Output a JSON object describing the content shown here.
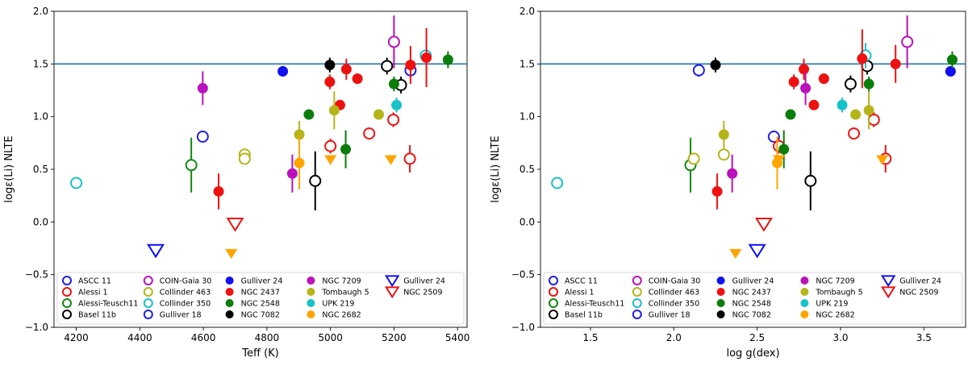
{
  "chart_data": [
    {
      "type": "scatter",
      "xlabel": "Teff (K)",
      "ylabel": "logε(Li) NLTE",
      "xlim": [
        4130,
        5430
      ],
      "ylim": [
        -1.0,
        2.0
      ],
      "xticks": [
        "4200",
        "4400",
        "4600",
        "4800",
        "5000",
        "5200",
        "5400"
      ],
      "yticks": [
        "−1.0",
        "−0.5",
        "0.0",
        "0.5",
        "1.0",
        "1.5",
        "2.0"
      ],
      "hline": 1.5,
      "legend": "lower",
      "series": [
        {
          "name": "ASCC 11",
          "marker": "circle-open",
          "color": "#1f1fe6",
          "points": [
            {
              "x": 4598,
              "y": 0.81,
              "err": 0.05
            },
            {
              "x": 5252,
              "y": 1.44,
              "err": 0.06
            }
          ]
        },
        {
          "name": "Alessi 1",
          "marker": "circle-open",
          "color": "#ee1111",
          "points": [
            {
              "x": 5000,
              "y": 0.72,
              "err": 0.07
            },
            {
              "x": 5122,
              "y": 0.84,
              "err": 0.05
            },
            {
              "x": 5198,
              "y": 0.97,
              "err": 0.07
            },
            {
              "x": 5250,
              "y": 0.6,
              "err": 0.13
            }
          ]
        },
        {
          "name": "Alessi-Teusch11",
          "marker": "circle-open",
          "color": "#0f8a0f",
          "points": [
            {
              "x": 4562,
              "y": 0.54,
              "err": 0.26
            }
          ]
        },
        {
          "name": "Basel 11b",
          "marker": "circle-open",
          "color": "#000000",
          "points": [
            {
              "x": 4952,
              "y": 0.39,
              "err": 0.28
            },
            {
              "x": 5178,
              "y": 1.48,
              "err": 0.08
            },
            {
              "x": 5222,
              "y": 1.3,
              "err": 0.08
            }
          ]
        },
        {
          "name": "COIN-Gaia 30",
          "marker": "circle-open",
          "color": "#bb11bb",
          "points": [
            {
              "x": 5200,
              "y": 1.71,
              "err": 0.25
            }
          ]
        },
        {
          "name": "Collinder 463",
          "marker": "circle-open",
          "color": "#b5b51a",
          "points": [
            {
              "x": 4730,
              "y": 0.64,
              "err": 0.04
            },
            {
              "x": 4730,
              "y": 0.6,
              "err": 0.04
            }
          ]
        },
        {
          "name": "Collinder 350",
          "marker": "circle-open",
          "color": "#17c2c8",
          "points": [
            {
              "x": 4200,
              "y": 0.37,
              "err": 0.05
            },
            {
              "x": 5300,
              "y": 1.58,
              "err": 0.05
            }
          ]
        },
        {
          "name": "Gulliver 18",
          "marker": "circle-open",
          "color": "#1f1fe6",
          "points": []
        },
        {
          "name": "Gulliver 24",
          "marker": "circle",
          "color": "#1010f0",
          "points": [
            {
              "x": 4850,
              "y": 1.43,
              "err": 0.05
            }
          ]
        },
        {
          "name": "NGC 2437",
          "marker": "circle",
          "color": "#ee1111",
          "points": [
            {
              "x": 4648,
              "y": 0.29,
              "err": 0.17
            },
            {
              "x": 4998,
              "y": 1.33,
              "err": 0.07
            },
            {
              "x": 5030,
              "y": 1.11,
              "err": 0.04
            },
            {
              "x": 5050,
              "y": 1.45,
              "err": 0.1
            },
            {
              "x": 5085,
              "y": 1.36,
              "err": 0.05
            },
            {
              "x": 5252,
              "y": 1.49,
              "err": 0.18
            },
            {
              "x": 5302,
              "y": 1.56,
              "err": 0.28
            }
          ]
        },
        {
          "name": "NGC 2548",
          "marker": "circle",
          "color": "#0a7d0a",
          "points": [
            {
              "x": 4932,
              "y": 1.02,
              "err": 0.04
            },
            {
              "x": 5048,
              "y": 0.69,
              "err": 0.18
            },
            {
              "x": 5200,
              "y": 1.31,
              "err": 0.07
            },
            {
              "x": 5370,
              "y": 1.54,
              "err": 0.08
            }
          ]
        },
        {
          "name": "NGC 7082",
          "marker": "circle",
          "color": "#000000",
          "points": [
            {
              "x": 4998,
              "y": 1.49,
              "err": 0.07
            }
          ]
        },
        {
          "name": "NGC 7209",
          "marker": "circle",
          "color": "#bb11bb",
          "points": [
            {
              "x": 4598,
              "y": 1.27,
              "err": 0.16
            },
            {
              "x": 4880,
              "y": 0.46,
              "err": 0.18
            }
          ]
        },
        {
          "name": "Tombaugh 5",
          "marker": "circle",
          "color": "#b5b51a",
          "points": [
            {
              "x": 4902,
              "y": 0.83,
              "err": 0.13
            },
            {
              "x": 5012,
              "y": 1.06,
              "err": 0.18
            },
            {
              "x": 5152,
              "y": 1.02,
              "err": 0.04
            }
          ]
        },
        {
          "name": "UPK 219",
          "marker": "circle",
          "color": "#17c2c8",
          "points": [
            {
              "x": 5208,
              "y": 1.11,
              "err": 0.07
            }
          ]
        },
        {
          "name": "NGC 2682",
          "marker": "circle",
          "color": "#ffa500",
          "points": [
            {
              "x": 4902,
              "y": 0.56,
              "err": 0.25
            }
          ]
        },
        {
          "name": "Gulliver 24",
          "marker": "triangle-down-open",
          "color": "#1010f0",
          "points": [
            {
              "x": 4450,
              "y": -0.27
            }
          ]
        },
        {
          "name": "NGC 2509",
          "marker": "triangle-down-open",
          "color": "#ee1111",
          "points": [
            {
              "x": 4700,
              "y": -0.02
            }
          ]
        },
        {
          "name": "NGC 2682 (upper limits)",
          "legend": false,
          "marker": "triangle-down",
          "color": "#ffa500",
          "points": [
            {
              "x": 4688,
              "y": -0.3
            },
            {
              "x": 5000,
              "y": 0.59
            },
            {
              "x": 5190,
              "y": 0.59
            }
          ]
        }
      ]
    },
    {
      "type": "scatter",
      "xlabel": "log g(dex)",
      "ylabel": "logε(Li) NLTE",
      "xlim": [
        1.2,
        3.75
      ],
      "ylim": [
        -1.0,
        2.0
      ],
      "xticks": [
        "1.5",
        "2.0",
        "2.5",
        "3.0",
        "3.5"
      ],
      "yticks": [
        "−1.0",
        "−0.5",
        "0.0",
        "0.5",
        "1.0",
        "1.5",
        "2.0"
      ],
      "hline": 1.5,
      "legend": "lower",
      "series": [
        {
          "name": "ASCC 11",
          "marker": "circle-open",
          "color": "#1f1fe6",
          "points": [
            {
              "x": 2.15,
              "y": 1.44,
              "err": 0.06
            },
            {
              "x": 2.6,
              "y": 0.81,
              "err": 0.05
            }
          ]
        },
        {
          "name": "Alessi 1",
          "marker": "circle-open",
          "color": "#ee1111",
          "points": [
            {
              "x": 3.08,
              "y": 0.84,
              "err": 0.05
            },
            {
              "x": 3.2,
              "y": 0.97,
              "err": 0.07
            },
            {
              "x": 3.27,
              "y": 0.6,
              "err": 0.13
            },
            {
              "x": 2.63,
              "y": 0.72,
              "err": 0.07
            }
          ]
        },
        {
          "name": "Alessi-Teusch11",
          "marker": "circle-open",
          "color": "#0f8a0f",
          "points": [
            {
              "x": 2.1,
              "y": 0.54,
              "err": 0.26
            }
          ]
        },
        {
          "name": "Basel 11b",
          "marker": "circle-open",
          "color": "#000000",
          "points": [
            {
              "x": 2.82,
              "y": 0.39,
              "err": 0.28
            },
            {
              "x": 3.06,
              "y": 1.31,
              "err": 0.08
            },
            {
              "x": 3.16,
              "y": 1.48,
              "err": 0.08
            }
          ]
        },
        {
          "name": "COIN-Gaia 30",
          "marker": "circle-open",
          "color": "#bb11bb",
          "points": [
            {
              "x": 3.4,
              "y": 1.71,
              "err": 0.25
            }
          ]
        },
        {
          "name": "Collinder 463",
          "marker": "circle-open",
          "color": "#b5b51a",
          "points": [
            {
              "x": 2.12,
              "y": 0.6,
              "err": 0.04
            },
            {
              "x": 2.3,
              "y": 0.64,
              "err": 0.04
            }
          ]
        },
        {
          "name": "Collinder 350",
          "marker": "circle-open",
          "color": "#17c2c8",
          "points": [
            {
              "x": 1.3,
              "y": 0.37,
              "err": 0.05
            },
            {
              "x": 3.15,
              "y": 1.58,
              "err": 0.12
            }
          ]
        },
        {
          "name": "Gulliver 18",
          "marker": "circle-open",
          "color": "#1f1fe6",
          "points": []
        },
        {
          "name": "Gulliver 24",
          "marker": "circle",
          "color": "#1010f0",
          "points": [
            {
              "x": 3.66,
              "y": 1.43,
              "err": 0.05
            }
          ]
        },
        {
          "name": "NGC 2437",
          "marker": "circle",
          "color": "#ee1111",
          "points": [
            {
              "x": 2.26,
              "y": 0.29,
              "err": 0.17
            },
            {
              "x": 2.72,
              "y": 1.33,
              "err": 0.07
            },
            {
              "x": 2.78,
              "y": 1.45,
              "err": 0.1
            },
            {
              "x": 2.84,
              "y": 1.11,
              "err": 0.04
            },
            {
              "x": 2.9,
              "y": 1.36,
              "err": 0.05
            },
            {
              "x": 3.13,
              "y": 1.55,
              "err": 0.28
            },
            {
              "x": 3.33,
              "y": 1.5,
              "err": 0.18
            }
          ]
        },
        {
          "name": "NGC 2548",
          "marker": "circle",
          "color": "#0a7d0a",
          "points": [
            {
              "x": 2.66,
              "y": 0.69,
              "err": 0.18
            },
            {
              "x": 2.7,
              "y": 1.02,
              "err": 0.04
            },
            {
              "x": 3.17,
              "y": 1.31,
              "err": 0.07
            },
            {
              "x": 3.67,
              "y": 1.54,
              "err": 0.08
            }
          ]
        },
        {
          "name": "NGC 7082",
          "marker": "circle",
          "color": "#000000",
          "points": [
            {
              "x": 2.25,
              "y": 1.49,
              "err": 0.07
            }
          ]
        },
        {
          "name": "NGC 7209",
          "marker": "circle",
          "color": "#bb11bb",
          "points": [
            {
              "x": 2.35,
              "y": 0.46,
              "err": 0.18
            },
            {
              "x": 2.79,
              "y": 1.27,
              "err": 0.16
            }
          ]
        },
        {
          "name": "Tombaugh 5",
          "marker": "circle",
          "color": "#b5b51a",
          "points": [
            {
              "x": 2.3,
              "y": 0.83,
              "err": 0.13
            },
            {
              "x": 3.09,
              "y": 1.02,
              "err": 0.04
            },
            {
              "x": 3.17,
              "y": 1.06,
              "err": 0.18
            }
          ]
        },
        {
          "name": "UPK 219",
          "marker": "circle",
          "color": "#17c2c8",
          "points": [
            {
              "x": 3.01,
              "y": 1.11,
              "err": 0.07
            }
          ]
        },
        {
          "name": "NGC 2682",
          "marker": "circle",
          "color": "#ffa500",
          "points": [
            {
              "x": 2.62,
              "y": 0.56,
              "err": 0.25
            }
          ]
        },
        {
          "name": "Gulliver 24",
          "marker": "triangle-down-open",
          "color": "#1010f0",
          "points": [
            {
              "x": 2.5,
              "y": -0.27
            }
          ]
        },
        {
          "name": "NGC 2509",
          "marker": "triangle-down-open",
          "color": "#ee1111",
          "points": [
            {
              "x": 2.54,
              "y": -0.02
            }
          ]
        },
        {
          "name": "NGC 2682 (upper limits)",
          "legend": false,
          "marker": "triangle-down",
          "color": "#ffa500",
          "points": [
            {
              "x": 2.37,
              "y": -0.3
            },
            {
              "x": 2.63,
              "y": 0.59
            },
            {
              "x": 3.25,
              "y": 0.59
            }
          ]
        }
      ]
    }
  ]
}
